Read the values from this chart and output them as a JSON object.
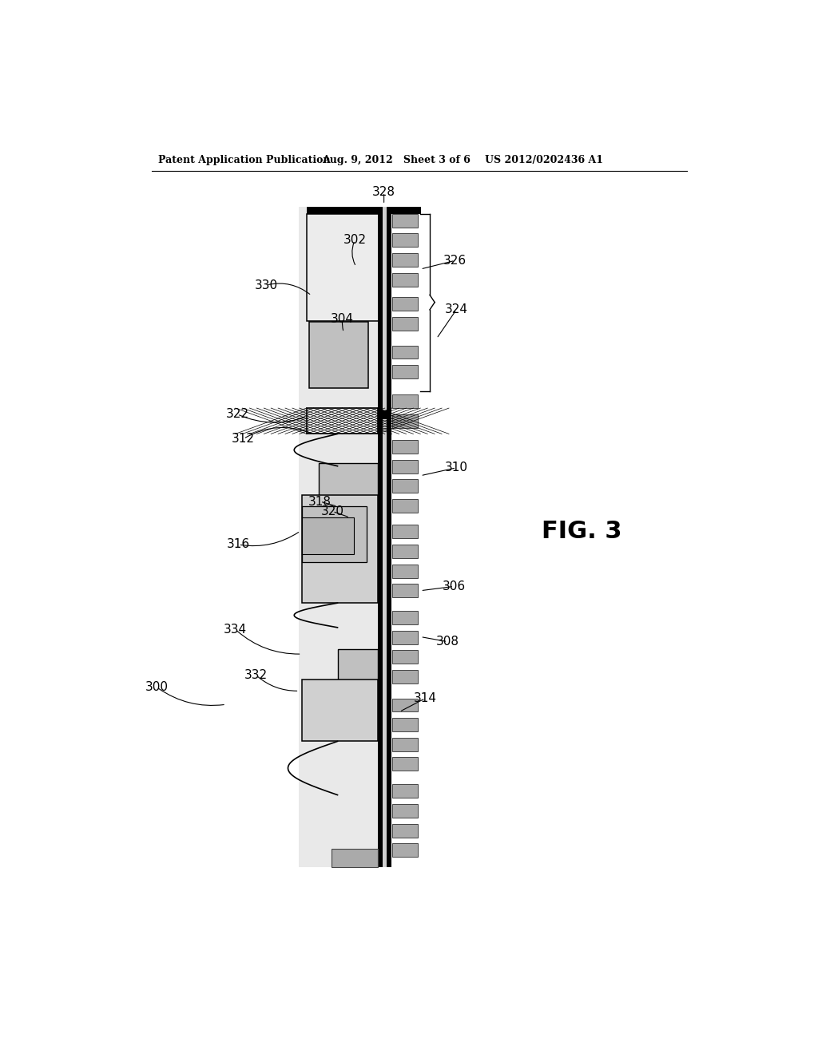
{
  "bg_color": "#ffffff",
  "header_left": "Patent Application Publication",
  "header_mid": "Aug. 9, 2012   Sheet 3 of 6",
  "header_right": "US 2012/0202436 A1",
  "fig_label": "FIG. 3",
  "pad_color": "#aaaaaa",
  "pad_edge": "#444444",
  "gray_light": "#e4e4e4",
  "gray_mid": "#b4b4b4",
  "black": "#000000",
  "substrate_gray": "#d8d8d8",
  "crosshatch_bg": "#f8f8f8",
  "component_gray": "#c0c0c0",
  "module_gray": "#d0d0d0"
}
